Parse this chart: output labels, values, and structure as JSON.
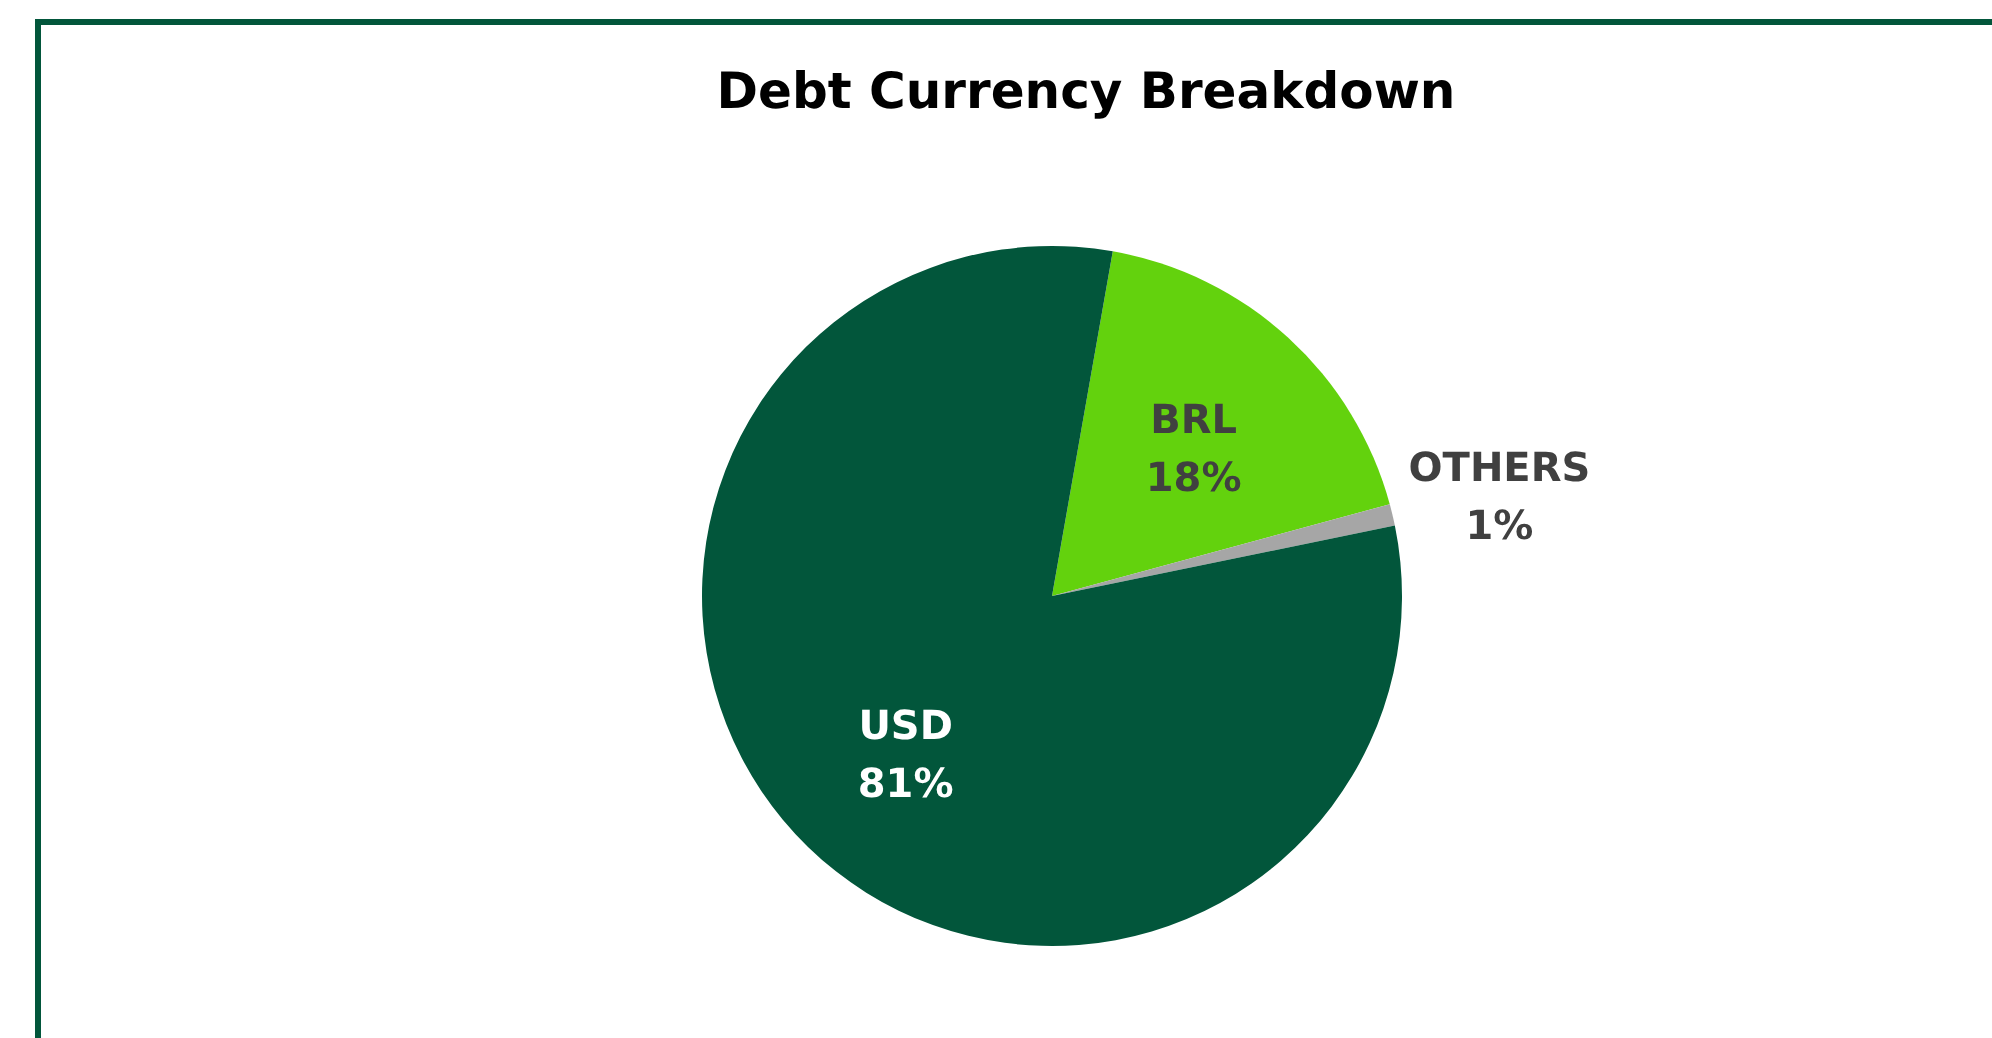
{
  "chart_data": {
    "type": "pie",
    "title": "Debt Currency Breakdown",
    "categories": [
      "BRL",
      "OTHERS",
      "USD"
    ],
    "values": [
      18,
      1,
      81
    ],
    "value_labels": [
      "18%",
      "1%",
      "81%"
    ],
    "colors": [
      "#63d20d",
      "#a6a6a6",
      "#02563b"
    ]
  }
}
